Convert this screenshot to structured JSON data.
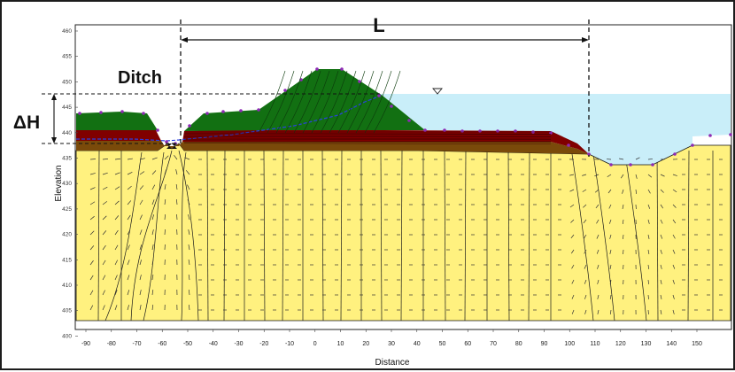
{
  "annotations": {
    "length_label": "L",
    "ditch_label": "Ditch",
    "head_label": "ΔH"
  },
  "axes": {
    "xlabel": "Distance",
    "ylabel": "Elevation",
    "x_ticks": [
      "-90",
      "-80",
      "-70",
      "-60",
      "-50",
      "-40",
      "-30",
      "-20",
      "-10",
      "0",
      "10",
      "20",
      "30",
      "40",
      "50",
      "60",
      "70",
      "80",
      "90",
      "100",
      "110",
      "120",
      "130",
      "140",
      "150"
    ],
    "y_ticks": [
      "460",
      "455",
      "450",
      "445",
      "440",
      "435",
      "430",
      "425",
      "420",
      "415",
      "410",
      "405",
      "400"
    ]
  },
  "colors": {
    "foundation": "#fff17f",
    "embankment": "#127012",
    "clay_layer": "#800000",
    "brown_layer": "#7a4a0a",
    "water": "#c9eef9",
    "phreatic_line": "#2a3fe0",
    "boundary_nodes": "#8d2bb4",
    "grid_bg": "#ffffff"
  }
}
